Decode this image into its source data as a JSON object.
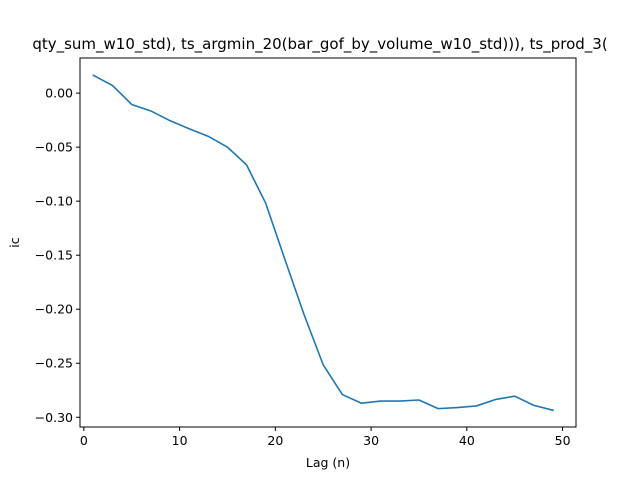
{
  "chart_data": {
    "type": "line",
    "title": "qty_sum_w10_std), ts_argmin_20(bar_gof_by_volume_w10_std))), ts_prod_3(",
    "xlabel": "Lag (n)",
    "ylabel": "ic",
    "xlim": [
      -0.4,
      51.4
    ],
    "ylim": [
      -0.309,
      0.0325
    ],
    "xticks": [
      0,
      10,
      20,
      30,
      40,
      50
    ],
    "yticks": [
      0.0,
      -0.05,
      -0.1,
      -0.15,
      -0.2,
      -0.25,
      -0.3
    ],
    "xtick_labels": [
      "0",
      "10",
      "20",
      "30",
      "40",
      "50"
    ],
    "ytick_labels": [
      "0.00",
      "−0.05",
      "−0.10",
      "−0.15",
      "−0.20",
      "−0.25",
      "−0.30"
    ],
    "grid": false,
    "series": [
      {
        "color": "#1f77b4",
        "x": [
          1,
          3,
          5,
          7,
          9,
          11,
          13,
          15,
          17,
          19,
          21,
          23,
          25,
          27,
          29,
          31,
          33,
          35,
          37,
          39,
          41,
          43,
          45,
          47,
          49
        ],
        "values": [
          0.0165,
          0.007,
          -0.0105,
          -0.0165,
          -0.0255,
          -0.033,
          -0.04,
          -0.05,
          -0.0665,
          -0.102,
          -0.154,
          -0.205,
          -0.2515,
          -0.279,
          -0.287,
          -0.285,
          -0.285,
          -0.284,
          -0.292,
          -0.291,
          -0.2895,
          -0.2835,
          -0.2805,
          -0.289,
          -0.2935
        ]
      }
    ]
  }
}
